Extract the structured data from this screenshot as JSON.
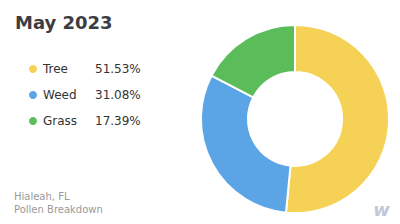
{
  "chart_data": {
    "type": "pie",
    "title": "May 2023",
    "subtitle": [
      "Hialeah, FL",
      "Pollen Breakdown"
    ],
    "categories": [
      "Tree",
      "Weed",
      "Grass"
    ],
    "values": [
      51.53,
      31.08,
      17.39
    ],
    "value_labels": [
      "51.53%",
      "31.08%",
      "17.39%"
    ],
    "colors": [
      "#F5D155",
      "#5BA4E5",
      "#5BBD5A"
    ],
    "legend": "left",
    "annotations": [
      "w"
    ]
  }
}
